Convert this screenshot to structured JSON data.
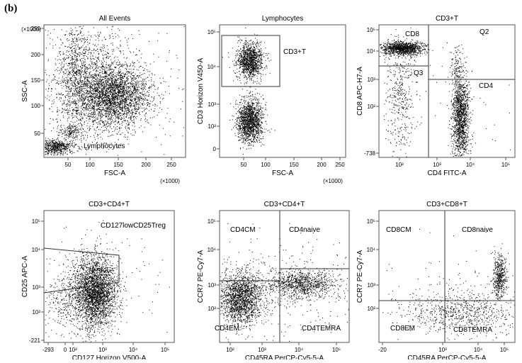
{
  "figure_label": "(b)",
  "panels": [
    {
      "title": "All Events",
      "x_label": "FSC-A",
      "y_label": "SSC-A",
      "x_unit": "(×1000)",
      "y_unit": "(×1000)",
      "x_ticks": [
        "50",
        "100",
        "150",
        "200",
        "250"
      ],
      "y_ticks": [
        "250",
        "200",
        "150",
        "100",
        "50"
      ],
      "gates": [
        "Lymphocytes"
      ]
    },
    {
      "title": "Lymphocytes",
      "x_label": "FSC-A",
      "y_label": "CD3 Horizon V450-A",
      "x_unit": "(×1000)",
      "x_ticks": [
        "50",
        "100",
        "150",
        "200",
        "250"
      ],
      "y_ticks": [
        "10⁵",
        "10⁴",
        "10³",
        "10²",
        "0"
      ],
      "gates": [
        "CD3+T"
      ]
    },
    {
      "title": "CD3+T",
      "x_label": "CD4 FITC-A",
      "y_label": "CD8 APC-H7-A",
      "x_ticks": [
        "10²",
        "10³",
        "10⁴",
        "10⁵"
      ],
      "y_ticks": [
        "10⁵",
        "10⁴",
        "10³",
        "10²",
        "-738"
      ],
      "gates": [
        "CD8",
        "Q2",
        "Q3",
        "CD4"
      ]
    },
    {
      "title": "CD3+CD4+T",
      "x_label": "CD127 Horizon V500-A",
      "y_label": "CD25 APC-A",
      "x_ticks": [
        "-293",
        "0",
        "10²",
        "10³",
        "10⁴",
        "10⁵"
      ],
      "y_ticks": [
        "10⁵",
        "10⁴",
        "10³",
        "10²",
        "-221"
      ],
      "gates": [
        "CD127lowCD25Treg"
      ]
    },
    {
      "title": "CD3+CD4+T",
      "x_label": "CD45RA PerCP-Cy5-5-A",
      "y_label": "CCR7 PE-Cy7-A",
      "x_ticks": [
        "10²",
        "10³",
        "10⁴",
        "10⁵"
      ],
      "y_ticks": [
        "10⁵",
        "10⁴",
        "10³",
        "10²"
      ],
      "gates": [
        "CD4CM",
        "CD4naive",
        "CD4EM",
        "CD4TEMRA"
      ]
    },
    {
      "title": "CD3+CD8+T",
      "x_label": "CD45RA PerCP-Cy5-5-A",
      "y_label": "CCR7 PE-Cy7-A",
      "x_ticks": [
        "-20",
        "10³",
        "10⁴",
        "10⁵"
      ],
      "y_ticks": [
        "10⁵",
        "10⁴",
        "10³",
        "10²"
      ],
      "gates": [
        "CD8CM",
        "CD8naive",
        "CD8EM",
        "CD8TEMRA"
      ]
    }
  ]
}
